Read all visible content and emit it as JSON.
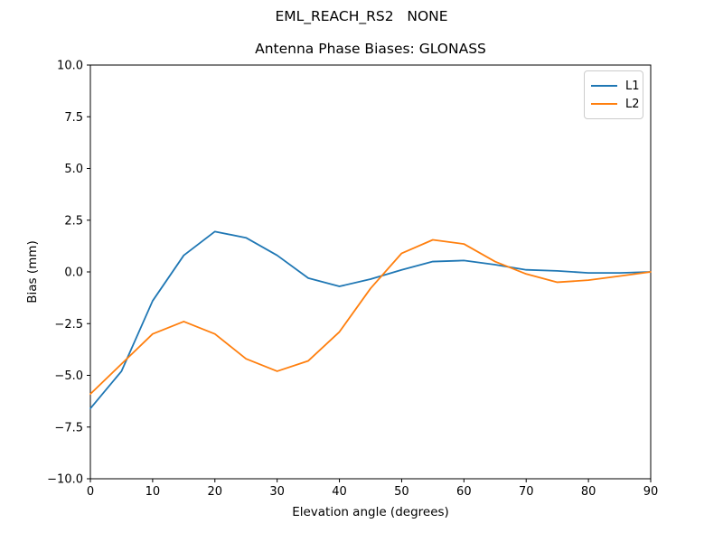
{
  "figure": {
    "suptitle": "EML_REACH_RS2   NONE"
  },
  "chart_data": {
    "type": "line",
    "title": "Antenna Phase Biases: GLONASS",
    "suptitle": "EML_REACH_RS2   NONE",
    "xlabel": "Elevation angle (degrees)",
    "ylabel": "Bias (mm)",
    "xlim": [
      0,
      90
    ],
    "ylim": [
      -10,
      10
    ],
    "grid": false,
    "legend_position": "upper right",
    "x": [
      0,
      5,
      10,
      15,
      20,
      25,
      30,
      35,
      40,
      45,
      50,
      55,
      60,
      65,
      70,
      75,
      80,
      85,
      90
    ],
    "series": [
      {
        "name": "L1",
        "color": "#1f77b4",
        "values": [
          -6.6,
          -4.8,
          -1.4,
          0.8,
          1.95,
          1.65,
          0.8,
          -0.3,
          -0.7,
          -0.35,
          0.1,
          0.5,
          0.55,
          0.35,
          0.1,
          0.05,
          -0.05,
          -0.05,
          0.0
        ]
      },
      {
        "name": "L2",
        "color": "#ff7f0e",
        "values": [
          -5.9,
          -4.45,
          -3.0,
          -2.4,
          -3.0,
          -4.2,
          -4.8,
          -4.3,
          -2.9,
          -0.8,
          0.9,
          1.55,
          1.35,
          0.5,
          -0.1,
          -0.5,
          -0.4,
          -0.2,
          0.0
        ]
      }
    ],
    "xtick_values": [
      0,
      10,
      20,
      30,
      40,
      50,
      60,
      70,
      80,
      90
    ],
    "xtick_labels": [
      "0",
      "10",
      "20",
      "30",
      "40",
      "50",
      "60",
      "70",
      "80",
      "90"
    ],
    "ytick_values": [
      -10,
      -7.5,
      -5,
      -2.5,
      0,
      2.5,
      5,
      7.5,
      10
    ],
    "ytick_labels": [
      "−10.0",
      "−7.5",
      "−5.0",
      "−2.5",
      "0.0",
      "2.5",
      "5.0",
      "7.5",
      "10.0"
    ],
    "frame_color": "#000000",
    "background_color": "#ffffff"
  }
}
